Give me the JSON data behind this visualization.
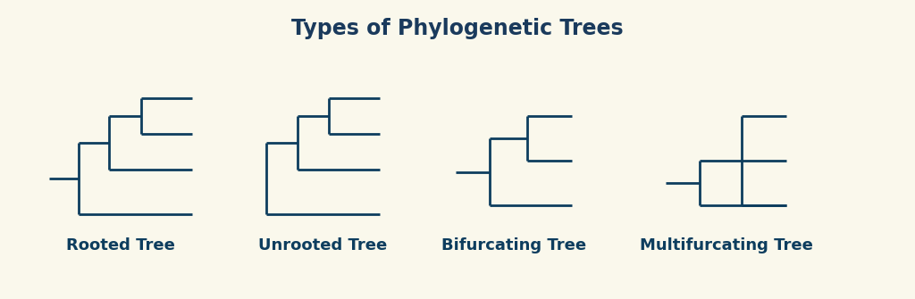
{
  "title": "Types of Phylogenetic Trees",
  "title_color": "#1a3a5c",
  "title_fontsize": 17,
  "bg_color": "#faf8ec",
  "tree_color": "#0d3d5e",
  "line_width": 2.0,
  "labels": [
    "Rooted Tree",
    "Unrooted Tree",
    "Bifurcating Tree",
    "Multifurcating Tree"
  ],
  "label_fontsize": 13,
  "label_color": "#0d3d5e"
}
